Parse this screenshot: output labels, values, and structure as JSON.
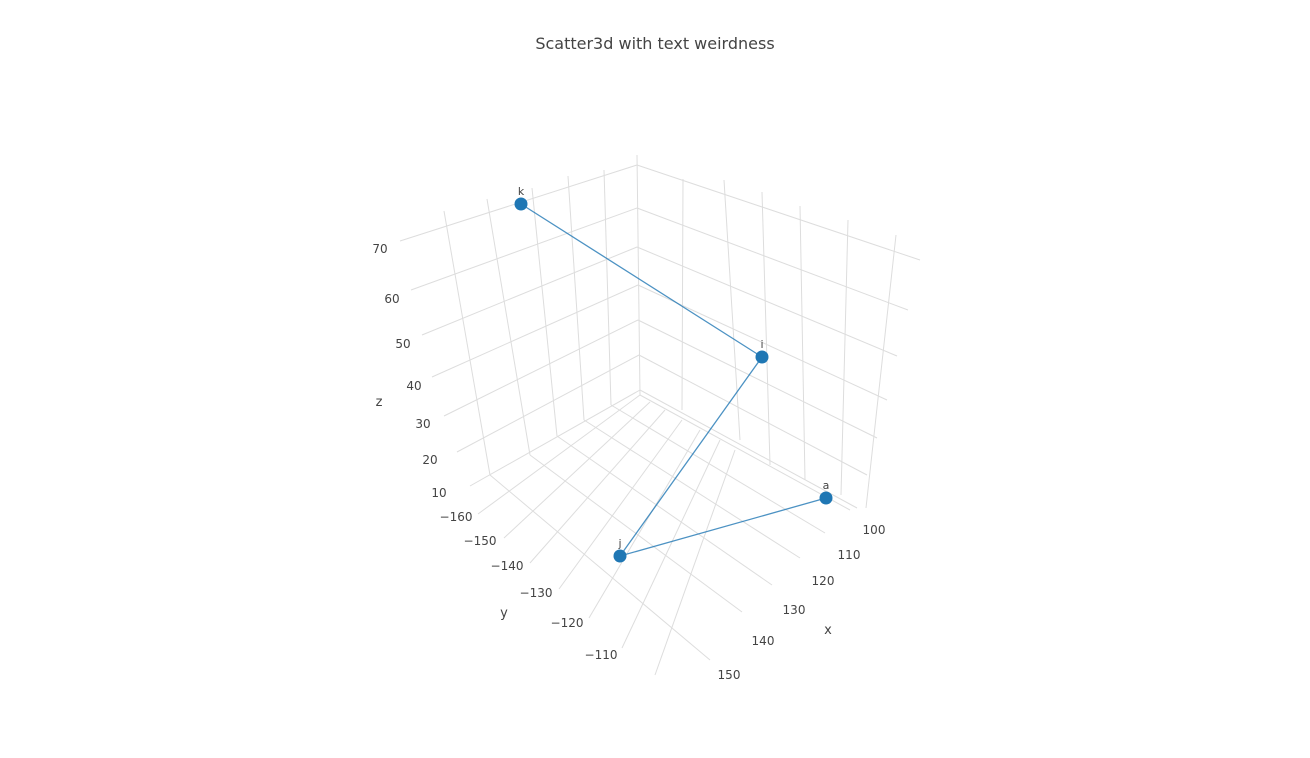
{
  "chart_data": {
    "type": "scatter",
    "mode": "scatter3d",
    "title": "Scatter3d with text weirdness",
    "axes": {
      "x": {
        "label": "x",
        "ticks": [
          100,
          110,
          120,
          130,
          140,
          150
        ]
      },
      "y": {
        "label": "y",
        "ticks": [
          -160,
          -150,
          -140,
          -130,
          -120,
          -110
        ]
      },
      "z": {
        "label": "z",
        "ticks": [
          10,
          20,
          30,
          40,
          50,
          60,
          70
        ]
      }
    },
    "tick_text": {
      "x": [
        "100",
        "110",
        "120",
        "130",
        "140",
        "150"
      ],
      "y": [
        "−160",
        "−150",
        "−140",
        "−130",
        "−120",
        "−110"
      ],
      "z": [
        "10",
        "20",
        "30",
        "40",
        "50",
        "60",
        "70"
      ]
    },
    "series": [
      {
        "points": [
          {
            "text": "a"
          },
          {
            "text": "j"
          },
          {
            "text": "i"
          },
          {
            "text": "k"
          }
        ],
        "color": "#1f77b4",
        "line_color": "#1f77b4",
        "mode": "lines+markers+text"
      }
    ],
    "grid": true,
    "legend": false
  }
}
